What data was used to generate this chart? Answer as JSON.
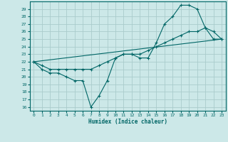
{
  "xlabel": "Humidex (Indice chaleur)",
  "background_color": "#cce8e8",
  "grid_color": "#aacccc",
  "line_color": "#006666",
  "xlim": [
    -0.5,
    23.5
  ],
  "ylim": [
    15.5,
    30
  ],
  "yticks": [
    16,
    17,
    18,
    19,
    20,
    21,
    22,
    23,
    24,
    25,
    26,
    27,
    28,
    29
  ],
  "xticks": [
    0,
    1,
    2,
    3,
    4,
    5,
    6,
    7,
    8,
    9,
    10,
    11,
    12,
    13,
    14,
    15,
    16,
    17,
    18,
    19,
    20,
    21,
    22,
    23
  ],
  "series1_x": [
    0,
    1,
    2,
    3,
    4,
    5,
    6,
    7,
    8,
    9,
    10,
    11,
    12,
    13,
    14,
    15,
    16,
    17,
    18,
    19,
    20,
    21,
    22,
    23
  ],
  "series1_y": [
    22,
    21,
    20.5,
    20.5,
    20,
    19.5,
    19.5,
    16,
    17.5,
    19.5,
    22.5,
    23,
    23,
    22.5,
    22.5,
    24.5,
    27,
    28,
    29.5,
    29.5,
    29,
    26.5,
    26,
    25
  ],
  "series2_x": [
    0,
    1,
    2,
    3,
    4,
    5,
    6,
    7,
    8,
    9,
    10,
    11,
    12,
    13,
    14,
    15,
    16,
    17,
    18,
    19,
    20,
    21,
    22,
    23
  ],
  "series2_y": [
    22,
    21.5,
    21,
    21,
    21,
    21,
    21,
    21,
    21.5,
    22,
    22.5,
    23,
    23,
    23,
    23.5,
    24,
    24.5,
    25,
    25.5,
    26,
    26,
    26.5,
    25,
    25
  ],
  "series3_x": [
    0,
    23
  ],
  "series3_y": [
    22,
    25
  ]
}
